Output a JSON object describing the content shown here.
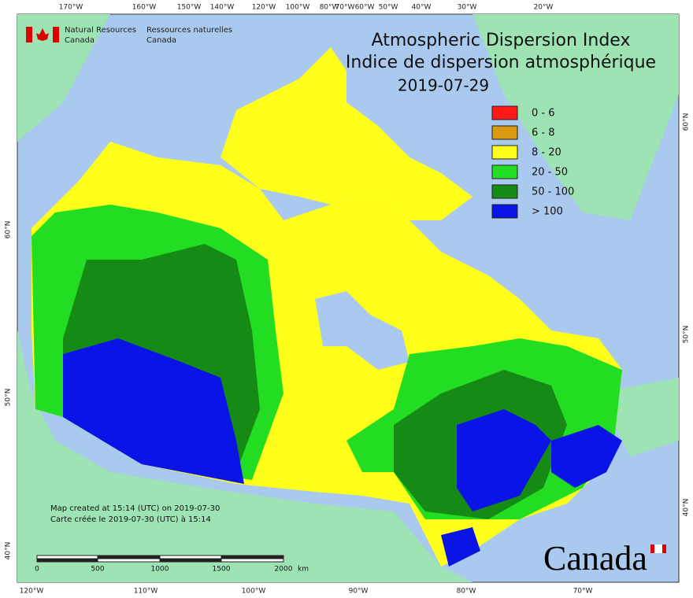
{
  "header": {
    "agency_en": [
      "Natural Resources",
      "Canada"
    ],
    "agency_fr": [
      "Ressources naturelles",
      "Canada"
    ]
  },
  "title": [
    "Atmospheric Dispersion Index",
    "Indice de dispersion atmosphérique"
  ],
  "date": "2019-07-29",
  "legend": [
    {
      "label": "0 - 6",
      "color": "#ff1a1a"
    },
    {
      "label": "6 - 8",
      "color": "#d89a10"
    },
    {
      "label": "8 - 20",
      "color": "#ffff1a"
    },
    {
      "label": "20 - 50",
      "color": "#22dd22"
    },
    {
      "label": "50 - 100",
      "color": "#158a15"
    },
    {
      "label": "> 100",
      "color": "#0a14e6"
    }
  ],
  "notes": [
    "Map created at 15:14 (UTC) on 2019-07-30",
    "Carte créée le 2019-07-30 (UTC) à 15:14"
  ],
  "scale_bar": {
    "ticks": [
      0,
      500,
      1000,
      1500,
      2000
    ],
    "unit": "km"
  },
  "graticule": {
    "top": [
      "170°W",
      "160°W",
      "150°W",
      "140°W",
      "120°W",
      "100°W",
      "80°W",
      "70°W",
      "60°W",
      "50°W",
      "40°W",
      "30°W",
      "20°W"
    ],
    "bottom": [
      "120°W",
      "110°W",
      "100°W",
      "90°W",
      "80°W",
      "70°W"
    ],
    "left": [
      "60°N",
      "50°N",
      "40°N"
    ],
    "right": [
      "60°N",
      "50°N",
      "40°N"
    ]
  },
  "wordmark": "Canada"
}
